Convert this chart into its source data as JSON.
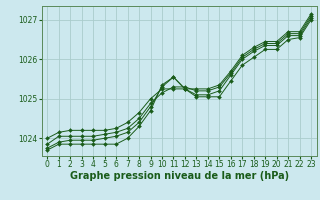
{
  "title": "Graphe pression niveau de la mer (hPa)",
  "background_color": "#cce8ee",
  "grid_color": "#aacccc",
  "line_color": "#1a5c1a",
  "marker_color": "#1a5c1a",
  "xlim": [
    -0.5,
    23.5
  ],
  "ylim": [
    1023.55,
    1027.35
  ],
  "yticks": [
    1024,
    1025,
    1026,
    1027
  ],
  "xticks": [
    0,
    1,
    2,
    3,
    4,
    5,
    6,
    7,
    8,
    9,
    10,
    11,
    12,
    13,
    14,
    15,
    16,
    17,
    18,
    19,
    20,
    21,
    22,
    23
  ],
  "series": [
    [
      1023.7,
      1023.85,
      1023.85,
      1023.85,
      1023.85,
      1023.85,
      1023.85,
      1024.0,
      1024.3,
      1024.7,
      1025.35,
      1025.55,
      1025.25,
      1025.05,
      1025.05,
      1025.05,
      1025.45,
      1025.85,
      1026.05,
      1026.25,
      1026.25,
      1026.5,
      1026.55,
      1027.0
    ],
    [
      1023.75,
      1023.9,
      1023.95,
      1023.95,
      1023.95,
      1024.0,
      1024.05,
      1024.15,
      1024.4,
      1024.8,
      1025.3,
      1025.55,
      1025.25,
      1025.1,
      1025.1,
      1025.2,
      1025.6,
      1026.0,
      1026.2,
      1026.35,
      1026.35,
      1026.6,
      1026.6,
      1027.05
    ],
    [
      1023.85,
      1024.05,
      1024.05,
      1024.05,
      1024.05,
      1024.1,
      1024.15,
      1024.25,
      1024.5,
      1024.88,
      1025.15,
      1025.3,
      1025.3,
      1025.2,
      1025.2,
      1025.3,
      1025.65,
      1026.05,
      1026.25,
      1026.4,
      1026.4,
      1026.65,
      1026.65,
      1027.1
    ],
    [
      1024.0,
      1024.15,
      1024.2,
      1024.2,
      1024.2,
      1024.2,
      1024.25,
      1024.4,
      1024.65,
      1025.0,
      1025.25,
      1025.25,
      1025.25,
      1025.25,
      1025.25,
      1025.35,
      1025.7,
      1026.1,
      1026.3,
      1026.45,
      1026.45,
      1026.7,
      1026.7,
      1027.15
    ]
  ],
  "title_fontsize": 7,
  "tick_fontsize": 5.5,
  "label_color": "#1a5c1a",
  "spine_color": "#5a8a5a"
}
